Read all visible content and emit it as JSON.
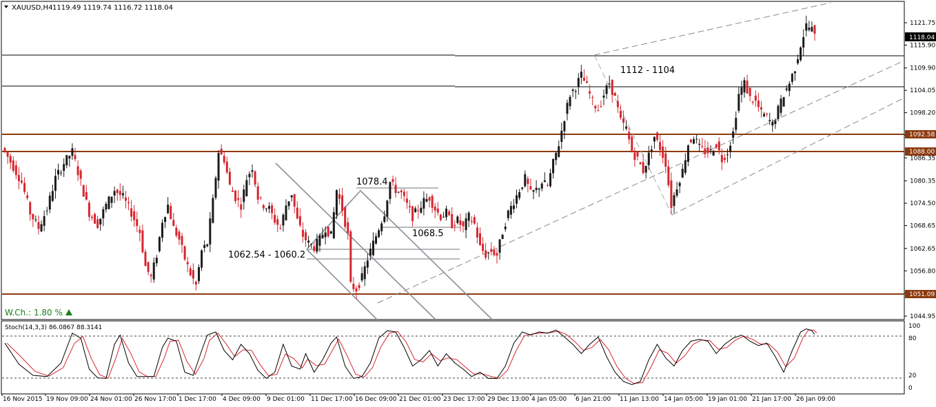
{
  "header": {
    "symbol_label": "XAUUSD,H4",
    "ohlc": "1119.49 1119.74 1116.72 1118.04"
  },
  "indicator": {
    "label": "Stoch(14,3,3) 86.0867 88.3141",
    "levels": [
      20,
      80
    ],
    "axis_ticks": [
      "100",
      "80",
      "20",
      "0"
    ]
  },
  "badges": {
    "last_price": "1118.04",
    "resistance_1": "1092.58",
    "resistance_2": "1088.00",
    "support": "1051.09"
  },
  "annotations": {
    "zone_label": "1112 - 1104",
    "swing_high": "1078.4",
    "mid_level": "1068.5",
    "support_zone": "1062.54 - 1060.2",
    "weekly_change": "W.Ch.: 1.80 %"
  },
  "colors": {
    "bull": "#1a1a1a",
    "bear": "#d6262f",
    "level_line": "#8b3a0e",
    "stoch_main": "#000000",
    "stoch_signal": "#d6262f",
    "up_arrow": "#1a7f1a"
  },
  "chart_data": {
    "type": "candlestick",
    "title": "XAUUSD,H4",
    "y_ticks": [
      "1121.75",
      "1115.90",
      "1109.90",
      "1104.05",
      "1098.20",
      "1092.35",
      "1086.35",
      "1080.35",
      "1074.50",
      "1068.65",
      "1062.65",
      "1056.80",
      "1050.95",
      "1044.95"
    ],
    "x_ticks": [
      "16 Nov 2015",
      "19 Nov 09:00",
      "24 Nov 01:00",
      "26 Nov 17:00",
      "1 Dec 17:00",
      "4 Dec 09:00",
      "9 Dec 01:00",
      "11 Dec 17:00",
      "16 Dec 09:00",
      "21 Dec 01:00",
      "23 Dec 17:00",
      "29 Dec 13:00",
      "4 Jan 05:00",
      "6 Jan 21:00",
      "11 Jan 13:00",
      "14 Jan 05:00",
      "19 Jan 01:00",
      "21 Jan 17:00",
      "26 Jan 09:00"
    ],
    "ylim": [
      1043,
      1125
    ],
    "horizontal_levels": [
      1112,
      1104,
      1092.58,
      1088.0,
      1051.09
    ],
    "close_path": [
      [
        0,
        1088
      ],
      [
        3,
        1084
      ],
      [
        6,
        1080
      ],
      [
        9,
        1072
      ],
      [
        12,
        1068
      ],
      [
        15,
        1073
      ],
      [
        18,
        1081
      ],
      [
        21,
        1085
      ],
      [
        24,
        1088
      ],
      [
        27,
        1080
      ],
      [
        30,
        1072
      ],
      [
        33,
        1069
      ],
      [
        36,
        1074
      ],
      [
        39,
        1078
      ],
      [
        42,
        1076
      ],
      [
        45,
        1072
      ],
      [
        48,
        1067
      ],
      [
        50,
        1058
      ],
      [
        52,
        1055
      ],
      [
        54,
        1061
      ],
      [
        56,
        1070
      ],
      [
        58,
        1074
      ],
      [
        60,
        1068
      ],
      [
        62,
        1065
      ],
      [
        64,
        1060
      ],
      [
        66,
        1056
      ],
      [
        68,
        1053
      ],
      [
        70,
        1062
      ],
      [
        72,
        1064
      ],
      [
        74,
        1075
      ],
      [
        76,
        1088
      ],
      [
        78,
        1086
      ],
      [
        80,
        1079
      ],
      [
        82,
        1076
      ],
      [
        84,
        1074
      ],
      [
        86,
        1081
      ],
      [
        88,
        1084
      ],
      [
        90,
        1076
      ],
      [
        92,
        1074
      ],
      [
        94,
        1073
      ],
      [
        96,
        1070
      ],
      [
        98,
        1068
      ],
      [
        100,
        1074
      ],
      [
        102,
        1077
      ],
      [
        104,
        1070
      ],
      [
        106,
        1066
      ],
      [
        108,
        1064
      ],
      [
        110,
        1063
      ],
      [
        112,
        1065
      ],
      [
        114,
        1068
      ],
      [
        116,
        1066
      ],
      [
        118,
        1078
      ],
      [
        120,
        1073
      ],
      [
        122,
        1066
      ],
      [
        123,
        1053
      ],
      [
        125,
        1052
      ],
      [
        127,
        1055
      ],
      [
        129,
        1060
      ],
      [
        131,
        1064
      ],
      [
        133,
        1068
      ],
      [
        135,
        1072
      ],
      [
        137,
        1080
      ],
      [
        139,
        1078
      ],
      [
        141,
        1077
      ],
      [
        143,
        1074
      ],
      [
        145,
        1071
      ],
      [
        147,
        1073
      ],
      [
        149,
        1075
      ],
      [
        151,
        1076
      ],
      [
        153,
        1073
      ],
      [
        155,
        1071
      ],
      [
        157,
        1072
      ],
      [
        159,
        1069
      ],
      [
        161,
        1070
      ],
      [
        163,
        1068
      ],
      [
        165,
        1071
      ],
      [
        167,
        1069
      ],
      [
        169,
        1063
      ],
      [
        171,
        1061
      ],
      [
        173,
        1062
      ],
      [
        175,
        1061
      ],
      [
        177,
        1067
      ],
      [
        179,
        1072
      ],
      [
        181,
        1075
      ],
      [
        183,
        1078
      ],
      [
        185,
        1081
      ],
      [
        187,
        1077
      ],
      [
        189,
        1078
      ],
      [
        191,
        1080
      ],
      [
        193,
        1079
      ],
      [
        195,
        1085
      ],
      [
        197,
        1090
      ],
      [
        199,
        1097
      ],
      [
        201,
        1103
      ],
      [
        203,
        1105
      ],
      [
        205,
        1108
      ],
      [
        207,
        1105
      ],
      [
        209,
        1101
      ],
      [
        211,
        1099
      ],
      [
        213,
        1103
      ],
      [
        215,
        1106
      ],
      [
        217,
        1102
      ],
      [
        219,
        1096
      ],
      [
        221,
        1094
      ],
      [
        223,
        1088
      ],
      [
        225,
        1086
      ],
      [
        227,
        1083
      ],
      [
        229,
        1087
      ],
      [
        231,
        1092
      ],
      [
        233,
        1089
      ],
      [
        235,
        1085
      ],
      [
        237,
        1074
      ],
      [
        239,
        1079
      ],
      [
        241,
        1083
      ],
      [
        243,
        1090
      ],
      [
        245,
        1092
      ],
      [
        247,
        1089
      ],
      [
        249,
        1088
      ],
      [
        251,
        1088
      ],
      [
        253,
        1090
      ],
      [
        255,
        1086
      ],
      [
        257,
        1088
      ],
      [
        259,
        1093
      ],
      [
        261,
        1103
      ],
      [
        263,
        1106
      ],
      [
        265,
        1102
      ],
      [
        267,
        1101
      ],
      [
        269,
        1098
      ],
      [
        271,
        1097
      ],
      [
        273,
        1095
      ],
      [
        275,
        1099
      ],
      [
        277,
        1103
      ],
      [
        279,
        1106
      ],
      [
        281,
        1110
      ],
      [
        283,
        1116
      ],
      [
        285,
        1121
      ],
      [
        287,
        1120
      ],
      [
        288,
        1118
      ]
    ],
    "stochastic": {
      "name": "Stoch(14,3,3)",
      "main_last": 86.0867,
      "signal_last": 88.3141,
      "points": [
        [
          0,
          72
        ],
        [
          5,
          38
        ],
        [
          10,
          20
        ],
        [
          15,
          18
        ],
        [
          20,
          40
        ],
        [
          24,
          88
        ],
        [
          27,
          80
        ],
        [
          30,
          30
        ],
        [
          33,
          16
        ],
        [
          36,
          15
        ],
        [
          39,
          70
        ],
        [
          41,
          85
        ],
        [
          44,
          40
        ],
        [
          47,
          18
        ],
        [
          50,
          18
        ],
        [
          53,
          18
        ],
        [
          56,
          65
        ],
        [
          58,
          80
        ],
        [
          61,
          75
        ],
        [
          64,
          25
        ],
        [
          67,
          20
        ],
        [
          70,
          60
        ],
        [
          72,
          85
        ],
        [
          75,
          90
        ],
        [
          78,
          60
        ],
        [
          81,
          45
        ],
        [
          84,
          70
        ],
        [
          87,
          55
        ],
        [
          90,
          28
        ],
        [
          93,
          15
        ],
        [
          96,
          25
        ],
        [
          99,
          70
        ],
        [
          102,
          35
        ],
        [
          105,
          30
        ],
        [
          107,
          55
        ],
        [
          110,
          25
        ],
        [
          113,
          45
        ],
        [
          116,
          72
        ],
        [
          118,
          82
        ],
        [
          121,
          35
        ],
        [
          124,
          15
        ],
        [
          127,
          18
        ],
        [
          130,
          40
        ],
        [
          133,
          80
        ],
        [
          136,
          92
        ],
        [
          139,
          90
        ],
        [
          142,
          65
        ],
        [
          145,
          35
        ],
        [
          148,
          45
        ],
        [
          151,
          60
        ],
        [
          154,
          35
        ],
        [
          157,
          55
        ],
        [
          160,
          40
        ],
        [
          163,
          30
        ],
        [
          166,
          18
        ],
        [
          169,
          25
        ],
        [
          172,
          15
        ],
        [
          175,
          15
        ],
        [
          178,
          35
        ],
        [
          181,
          72
        ],
        [
          184,
          90
        ],
        [
          187,
          85
        ],
        [
          190,
          90
        ],
        [
          193,
          88
        ],
        [
          196,
          93
        ],
        [
          199,
          82
        ],
        [
          202,
          70
        ],
        [
          205,
          55
        ],
        [
          208,
          70
        ],
        [
          211,
          82
        ],
        [
          214,
          50
        ],
        [
          217,
          25
        ],
        [
          220,
          10
        ],
        [
          223,
          5
        ],
        [
          226,
          10
        ],
        [
          229,
          45
        ],
        [
          232,
          70
        ],
        [
          235,
          48
        ],
        [
          238,
          35
        ],
        [
          241,
          60
        ],
        [
          244,
          75
        ],
        [
          247,
          78
        ],
        [
          250,
          75
        ],
        [
          253,
          55
        ],
        [
          256,
          70
        ],
        [
          259,
          80
        ],
        [
          262,
          85
        ],
        [
          265,
          75
        ],
        [
          268,
          68
        ],
        [
          271,
          72
        ],
        [
          274,
          50
        ],
        [
          277,
          25
        ],
        [
          280,
          60
        ],
        [
          283,
          90
        ],
        [
          285,
          95
        ],
        [
          287,
          92
        ],
        [
          288,
          86
        ]
      ]
    }
  }
}
